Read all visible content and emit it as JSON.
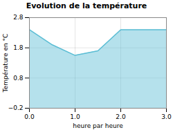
{
  "chart_data": {
    "type": "area",
    "title": "Evolution de la température",
    "xlabel": "heure par heure",
    "ylabel": "Température en °C",
    "x": [
      0,
      0.5,
      1,
      1.5,
      2,
      2.5,
      3
    ],
    "values": [
      2.4,
      1.9,
      1.55,
      1.7,
      2.4,
      2.4,
      2.4
    ],
    "xlim": [
      0,
      3
    ],
    "ylim": [
      -0.2,
      2.8
    ],
    "xticks": [
      0,
      1,
      2,
      3
    ],
    "yticks": [
      -0.2,
      0.8,
      1.8,
      2.8
    ],
    "color": "#5bbdd4",
    "grid": true
  }
}
